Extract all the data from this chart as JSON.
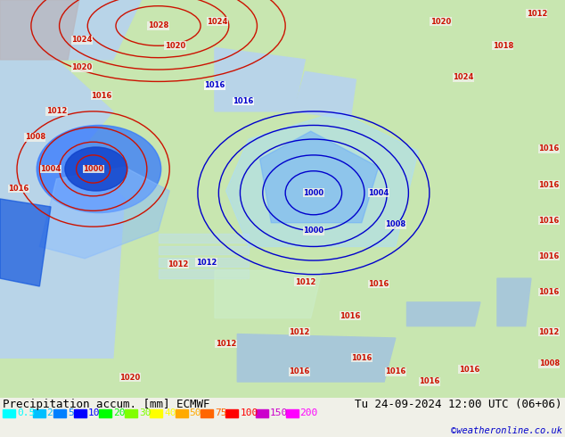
{
  "title_left": "Precipitation accum. [mm] ECMWF",
  "title_right": "Tu 24-09-2024 12:00 UTC (06+06)",
  "watermark": "©weatheronline.co.uk",
  "legend_values": [
    "0.5",
    "2",
    "5",
    "10",
    "20",
    "30",
    "40",
    "50",
    "75",
    "100",
    "150",
    "200"
  ],
  "legend_colors": [
    "#00ffff",
    "#00bfff",
    "#0080ff",
    "#0000ff",
    "#00ff00",
    "#80ff00",
    "#ffff00",
    "#ffaa00",
    "#ff6600",
    "#ff0000",
    "#cc00cc",
    "#ff00ff"
  ],
  "bg_color": "#f0f0e8",
  "map_bg": "#c8e6b0",
  "text_color": "#000000",
  "title_fontsize": 9,
  "legend_fontsize": 8,
  "figsize": [
    6.34,
    4.9
  ],
  "dpi": 100
}
